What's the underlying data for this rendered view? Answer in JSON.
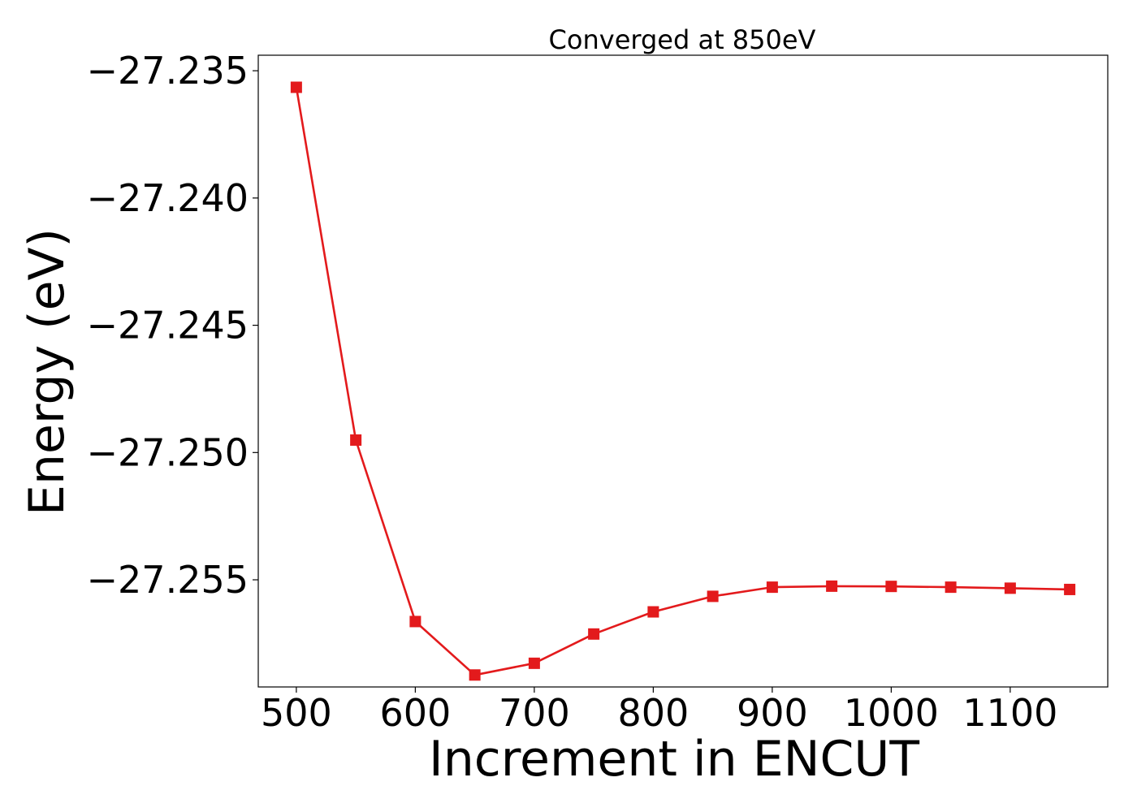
{
  "chart_data": {
    "type": "line",
    "title": "Converged at 850eV",
    "xlabel": "Increment in ENCUT",
    "ylabel": "Energy (eV)",
    "xlim": [
      468,
      1182
    ],
    "ylim": [
      -27.25921,
      -27.23439
    ],
    "x_ticks": [
      500,
      600,
      700,
      800,
      900,
      1000,
      1100
    ],
    "x_tick_labels": [
      "500",
      "600",
      "700",
      "800",
      "900",
      "1000",
      "1100"
    ],
    "y_ticks": [
      -27.235,
      -27.24,
      -27.245,
      -27.25,
      -27.255
    ],
    "y_tick_labels": [
      "−27.235",
      "−27.240",
      "−27.245",
      "−27.250",
      "−27.255"
    ],
    "grid": false,
    "series": [
      {
        "color": "#e31a1c",
        "marker": "square",
        "x": [
          500,
          550,
          600,
          650,
          700,
          750,
          800,
          850,
          900,
          950,
          1000,
          1050,
          1100,
          1150
        ],
        "y": [
          -27.23565,
          -27.24951,
          -27.25664,
          -27.25874,
          -27.25828,
          -27.25713,
          -27.25626,
          -27.25565,
          -27.25529,
          -27.25525,
          -27.25526,
          -27.25529,
          -27.25533,
          -27.25538
        ]
      }
    ]
  }
}
